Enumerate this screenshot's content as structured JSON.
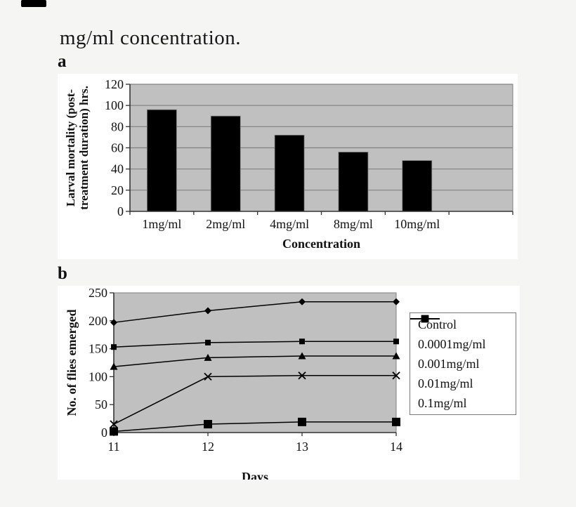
{
  "page": {
    "heading": "mg/ml concentration.",
    "panel_a_label": "a",
    "panel_b_label": "b",
    "background_color": "#f5f5f4"
  },
  "colors": {
    "plot_background": "#c0c0c0",
    "gridline": "#808080",
    "axis": "#333333",
    "series": "#000000",
    "chart_background": "#ffffff"
  },
  "chart_data": [
    {
      "id": "a",
      "type": "bar",
      "categories": [
        "1mg/ml",
        "2mg/ml",
        "4mg/ml",
        "8mg/ml",
        "10mg/ml"
      ],
      "values": [
        96,
        90,
        72,
        56,
        48
      ],
      "xlabel": "Concentration",
      "ylabel": "Larval mortality (post-treatment duration) hrs.",
      "ylabel_lines": [
        "Larval mortality (post-",
        "treatment duration) hrs."
      ],
      "ylim": [
        0,
        120
      ],
      "ytick_step": 20,
      "yticks": [
        0,
        20,
        40,
        60,
        80,
        100,
        120
      ],
      "grid": true,
      "slots": 6,
      "bar_color": "#000000"
    },
    {
      "id": "b",
      "type": "line",
      "x": [
        11,
        12,
        13,
        14
      ],
      "series": [
        {
          "name": "Control",
          "marker": "diamond",
          "values": [
            197,
            218,
            234,
            234
          ]
        },
        {
          "name": "0.0001mg/ml",
          "marker": "square-small",
          "values": [
            153,
            161,
            163,
            163
          ]
        },
        {
          "name": "0.001mg/ml",
          "marker": "triangle",
          "values": [
            118,
            134,
            137,
            137
          ]
        },
        {
          "name": "0.01mg/ml",
          "marker": "x",
          "values": [
            15,
            100,
            102,
            102
          ]
        },
        {
          "name": "0.1mg/ml",
          "marker": "square-large",
          "values": [
            2,
            15,
            19,
            19
          ]
        }
      ],
      "xlabel": "Days",
      "ylabel": "No. of flies emerged",
      "ylim": [
        0,
        250
      ],
      "ytick_step": 50,
      "yticks": [
        0,
        50,
        100,
        150,
        200,
        250
      ],
      "grid": false,
      "legend_position": "right"
    }
  ]
}
